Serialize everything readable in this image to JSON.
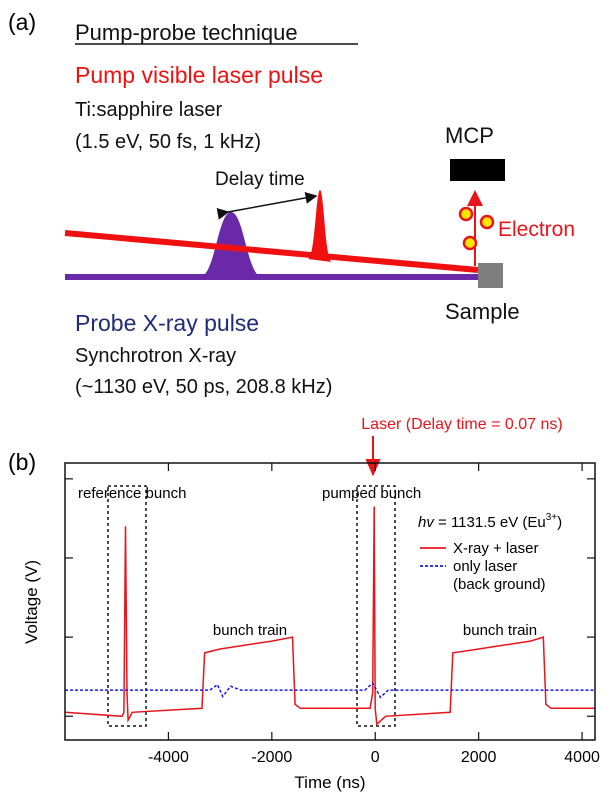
{
  "panel_a": {
    "label": "(a)",
    "heading": "Pump-probe technique",
    "pump_title": "Pump visible laser pulse",
    "pump_source": "Ti:sapphire laser",
    "pump_params": "(1.5 eV, 50 fs, 1 kHz)",
    "delay": "Delay time",
    "detector": "MCP",
    "electron": "Electron",
    "sample": "Sample",
    "probe_title": "Probe X-ray pulse",
    "probe_source": "Synchrotron X-ray",
    "probe_params": "(~1130 eV, 50 ps, 208.8 kHz)"
  },
  "chart_data": {
    "type": "line",
    "panel_label": "(b)",
    "x_label": "Time (ns)",
    "y_label": "Voltage (V)",
    "xlim": [
      -6000,
      4250
    ],
    "xticks": [
      -4000,
      -2000,
      0,
      2000,
      4000
    ],
    "ylim": [
      -0.3,
      3.2
    ],
    "yticks": [
      0,
      1,
      2,
      3
    ],
    "legend_title": {
      "symbol": "hv",
      "text": " = 1131.5 eV (Eu",
      "sup": "3+",
      "close": ")"
    },
    "annotations": {
      "laser": "Laser (Delay time = 0.07 ns)",
      "reference": "reference bunch",
      "pumped": "pumped bunch",
      "train_left": "bunch train",
      "train_right": "bunch train"
    },
    "series": [
      {
        "name": [
          "X-ray + laser"
        ],
        "color": "#e8141c",
        "dash": false,
        "x": [
          -6000,
          -4900,
          -4860,
          -4830,
          -4800,
          -4780,
          -4700,
          -3350,
          -3300,
          -3000,
          -2500,
          -2000,
          -1600,
          -1550,
          -1450,
          -100,
          -50,
          -20,
          0,
          30,
          200,
          1450,
          1500,
          2000,
          2500,
          3000,
          3250,
          3300,
          3400,
          4250
        ],
        "values": [
          0.05,
          0.0,
          0.05,
          2.4,
          0.3,
          -0.05,
          0.05,
          0.1,
          0.8,
          0.85,
          0.9,
          0.95,
          1.0,
          0.15,
          0.1,
          0.1,
          0.3,
          2.65,
          0.1,
          -0.1,
          0.0,
          0.05,
          0.8,
          0.85,
          0.9,
          0.95,
          1.0,
          0.15,
          0.1,
          0.1
        ]
      },
      {
        "name": [
          "only laser",
          "(back ground)"
        ],
        "color": "#1a1ae6",
        "dash": true,
        "x": [
          -6000,
          -3200,
          -3050,
          -2950,
          -2800,
          -2600,
          -200,
          -50,
          100,
          250,
          4250
        ],
        "values": [
          0.33,
          0.33,
          0.4,
          0.25,
          0.38,
          0.33,
          0.33,
          0.42,
          0.24,
          0.33,
          0.33
        ]
      }
    ]
  }
}
